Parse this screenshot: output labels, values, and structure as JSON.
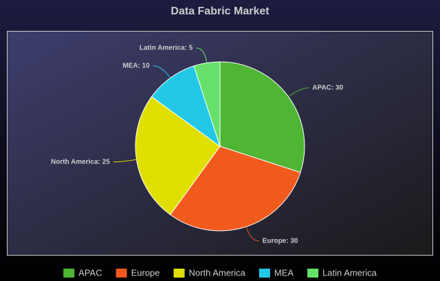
{
  "chart_data": {
    "type": "pie",
    "title": "Data Fabric Market",
    "categories": [
      "APAC",
      "Europe",
      "North America",
      "MEA",
      "Latin America"
    ],
    "values": [
      30,
      30,
      25,
      10,
      5
    ],
    "value_labels": [
      "APAC: 30",
      "Europe: 30",
      "North America: 25",
      "MEA: 10",
      "Latin America: 5"
    ],
    "colors": [
      "#4fb535",
      "#f05a1c",
      "#e0e000",
      "#22c8e6",
      "#66e06a"
    ],
    "legend": "bottom"
  }
}
